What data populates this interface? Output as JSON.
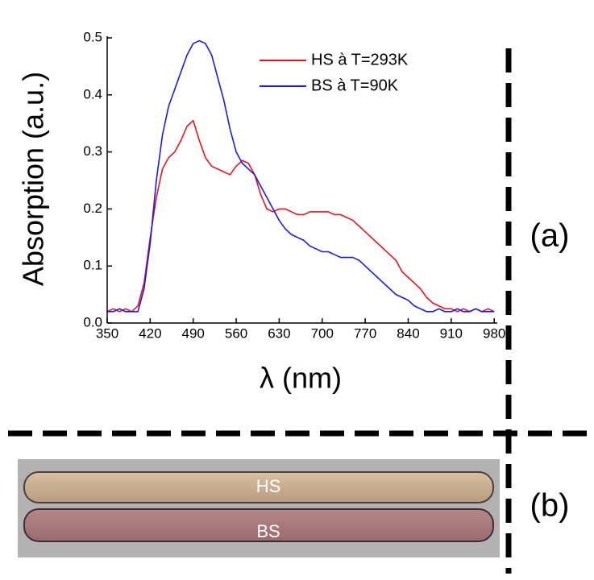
{
  "chart_data": {
    "type": "line",
    "y_label": "Absorption (a.u.)",
    "x_label": "λ (nm)",
    "x": [
      350,
      360,
      370,
      380,
      390,
      400,
      410,
      420,
      430,
      440,
      450,
      460,
      470,
      480,
      490,
      500,
      510,
      520,
      530,
      540,
      550,
      560,
      570,
      580,
      590,
      600,
      610,
      620,
      630,
      640,
      650,
      660,
      670,
      680,
      690,
      700,
      710,
      720,
      730,
      740,
      750,
      760,
      770,
      780,
      790,
      800,
      810,
      820,
      830,
      840,
      850,
      860,
      870,
      880,
      890,
      900,
      910,
      920,
      930,
      940,
      950,
      960,
      970,
      980
    ],
    "series": [
      {
        "name": "HS à T=293K",
        "color": "#e8141c",
        "values": [
          0.02,
          0.025,
          0.02,
          0.025,
          0.02,
          0.03,
          0.07,
          0.15,
          0.22,
          0.27,
          0.29,
          0.3,
          0.32,
          0.345,
          0.355,
          0.32,
          0.29,
          0.275,
          0.27,
          0.265,
          0.26,
          0.275,
          0.285,
          0.28,
          0.26,
          0.225,
          0.2,
          0.195,
          0.2,
          0.2,
          0.195,
          0.19,
          0.19,
          0.195,
          0.195,
          0.195,
          0.195,
          0.19,
          0.19,
          0.185,
          0.18,
          0.17,
          0.16,
          0.15,
          0.14,
          0.13,
          0.12,
          0.11,
          0.09,
          0.08,
          0.07,
          0.06,
          0.045,
          0.035,
          0.03,
          0.025,
          0.025,
          0.02,
          0.025,
          0.02,
          0.025,
          0.02,
          0.025,
          0.02
        ]
      },
      {
        "name": "BS à T=90K",
        "color": "#1a1ae6",
        "values": [
          0.02,
          0.02,
          0.025,
          0.02,
          0.02,
          0.02,
          0.06,
          0.14,
          0.25,
          0.33,
          0.38,
          0.41,
          0.44,
          0.47,
          0.49,
          0.495,
          0.49,
          0.47,
          0.43,
          0.39,
          0.34,
          0.3,
          0.28,
          0.27,
          0.26,
          0.24,
          0.22,
          0.2,
          0.18,
          0.165,
          0.155,
          0.15,
          0.145,
          0.135,
          0.13,
          0.125,
          0.125,
          0.12,
          0.115,
          0.115,
          0.115,
          0.11,
          0.1,
          0.09,
          0.08,
          0.07,
          0.06,
          0.05,
          0.045,
          0.04,
          0.03,
          0.025,
          0.02,
          0.02,
          0.025,
          0.02,
          0.02,
          0.025,
          0.02,
          0.02,
          0.025,
          0.02,
          0.02,
          0.02
        ]
      }
    ],
    "xlim": [
      350,
      985
    ],
    "ylim": [
      0,
      0.5
    ],
    "xticks": [
      350,
      420,
      490,
      560,
      630,
      700,
      770,
      840,
      910,
      980
    ],
    "yticks": [
      {
        "value": 0,
        "label": "0.0"
      },
      0.1,
      0.2,
      0.3,
      0.4,
      0.5
    ]
  },
  "panels": {
    "a_label": "(a)",
    "b_label": "(b)",
    "crystal_labels": [
      "HS",
      "BS"
    ]
  }
}
